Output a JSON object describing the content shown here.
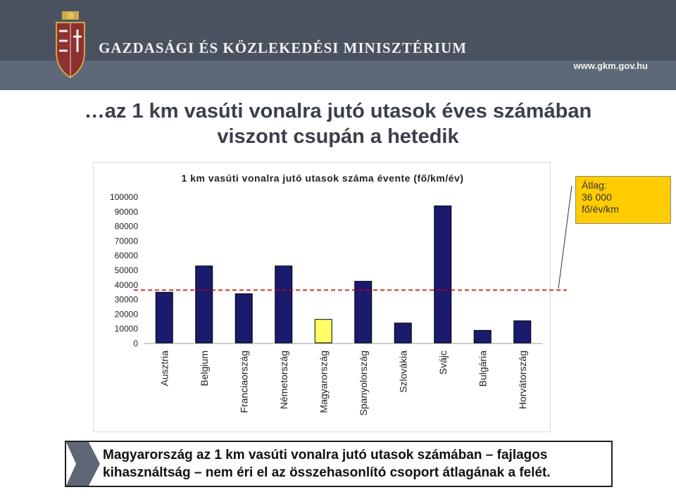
{
  "header": {
    "ministry": "GAZDASÁGI ÉS KÖZLEKEDÉSI MINISZTÉRIUM",
    "url": "www.gkm.gov.hu",
    "logo_icon": "hungarian-coat-of-arms-icon"
  },
  "slide_title": {
    "line1": "…az 1 km vasúti vonalra jutó utasok éves számában",
    "line2": "viszont csupán a hetedik"
  },
  "colors": {
    "bar": "#1a1a6e",
    "highlight_bar": "#ffff66",
    "average_line": "#cc0000",
    "callout_bg": "#ffcc00"
  },
  "chart_data": {
    "type": "bar",
    "title": "1 km vasúti vonalra jutó utasok száma évente (fő/km/év)",
    "categories": [
      "Ausztria",
      "Belgium",
      "Franciaország",
      "Németország",
      "Magyarország",
      "Spanyolország",
      "Szlovákia",
      "Svájc",
      "Bulgária",
      "Horvátország"
    ],
    "values": [
      34500,
      52500,
      33500,
      52500,
      16000,
      42000,
      13500,
      93500,
      8500,
      15000
    ],
    "highlight_index": 4,
    "ylim": [
      0,
      100000
    ],
    "yticks": [
      0,
      10000,
      20000,
      30000,
      40000,
      50000,
      60000,
      70000,
      80000,
      90000,
      100000
    ],
    "average": 36000,
    "grid": false,
    "legend": "none"
  },
  "callout": {
    "line1": "Átlag:",
    "line2": "36 000",
    "line3": "fő/év/km"
  },
  "conclusion": {
    "line1": "Magyarország az 1 km vasúti vonalra jutó utasok számában – fajlagos",
    "line2": "kihasználtság – nem éri el az összehasonlító csoport átlagának a felét.",
    "arrow_icon": "chevron-arrow-icon"
  }
}
